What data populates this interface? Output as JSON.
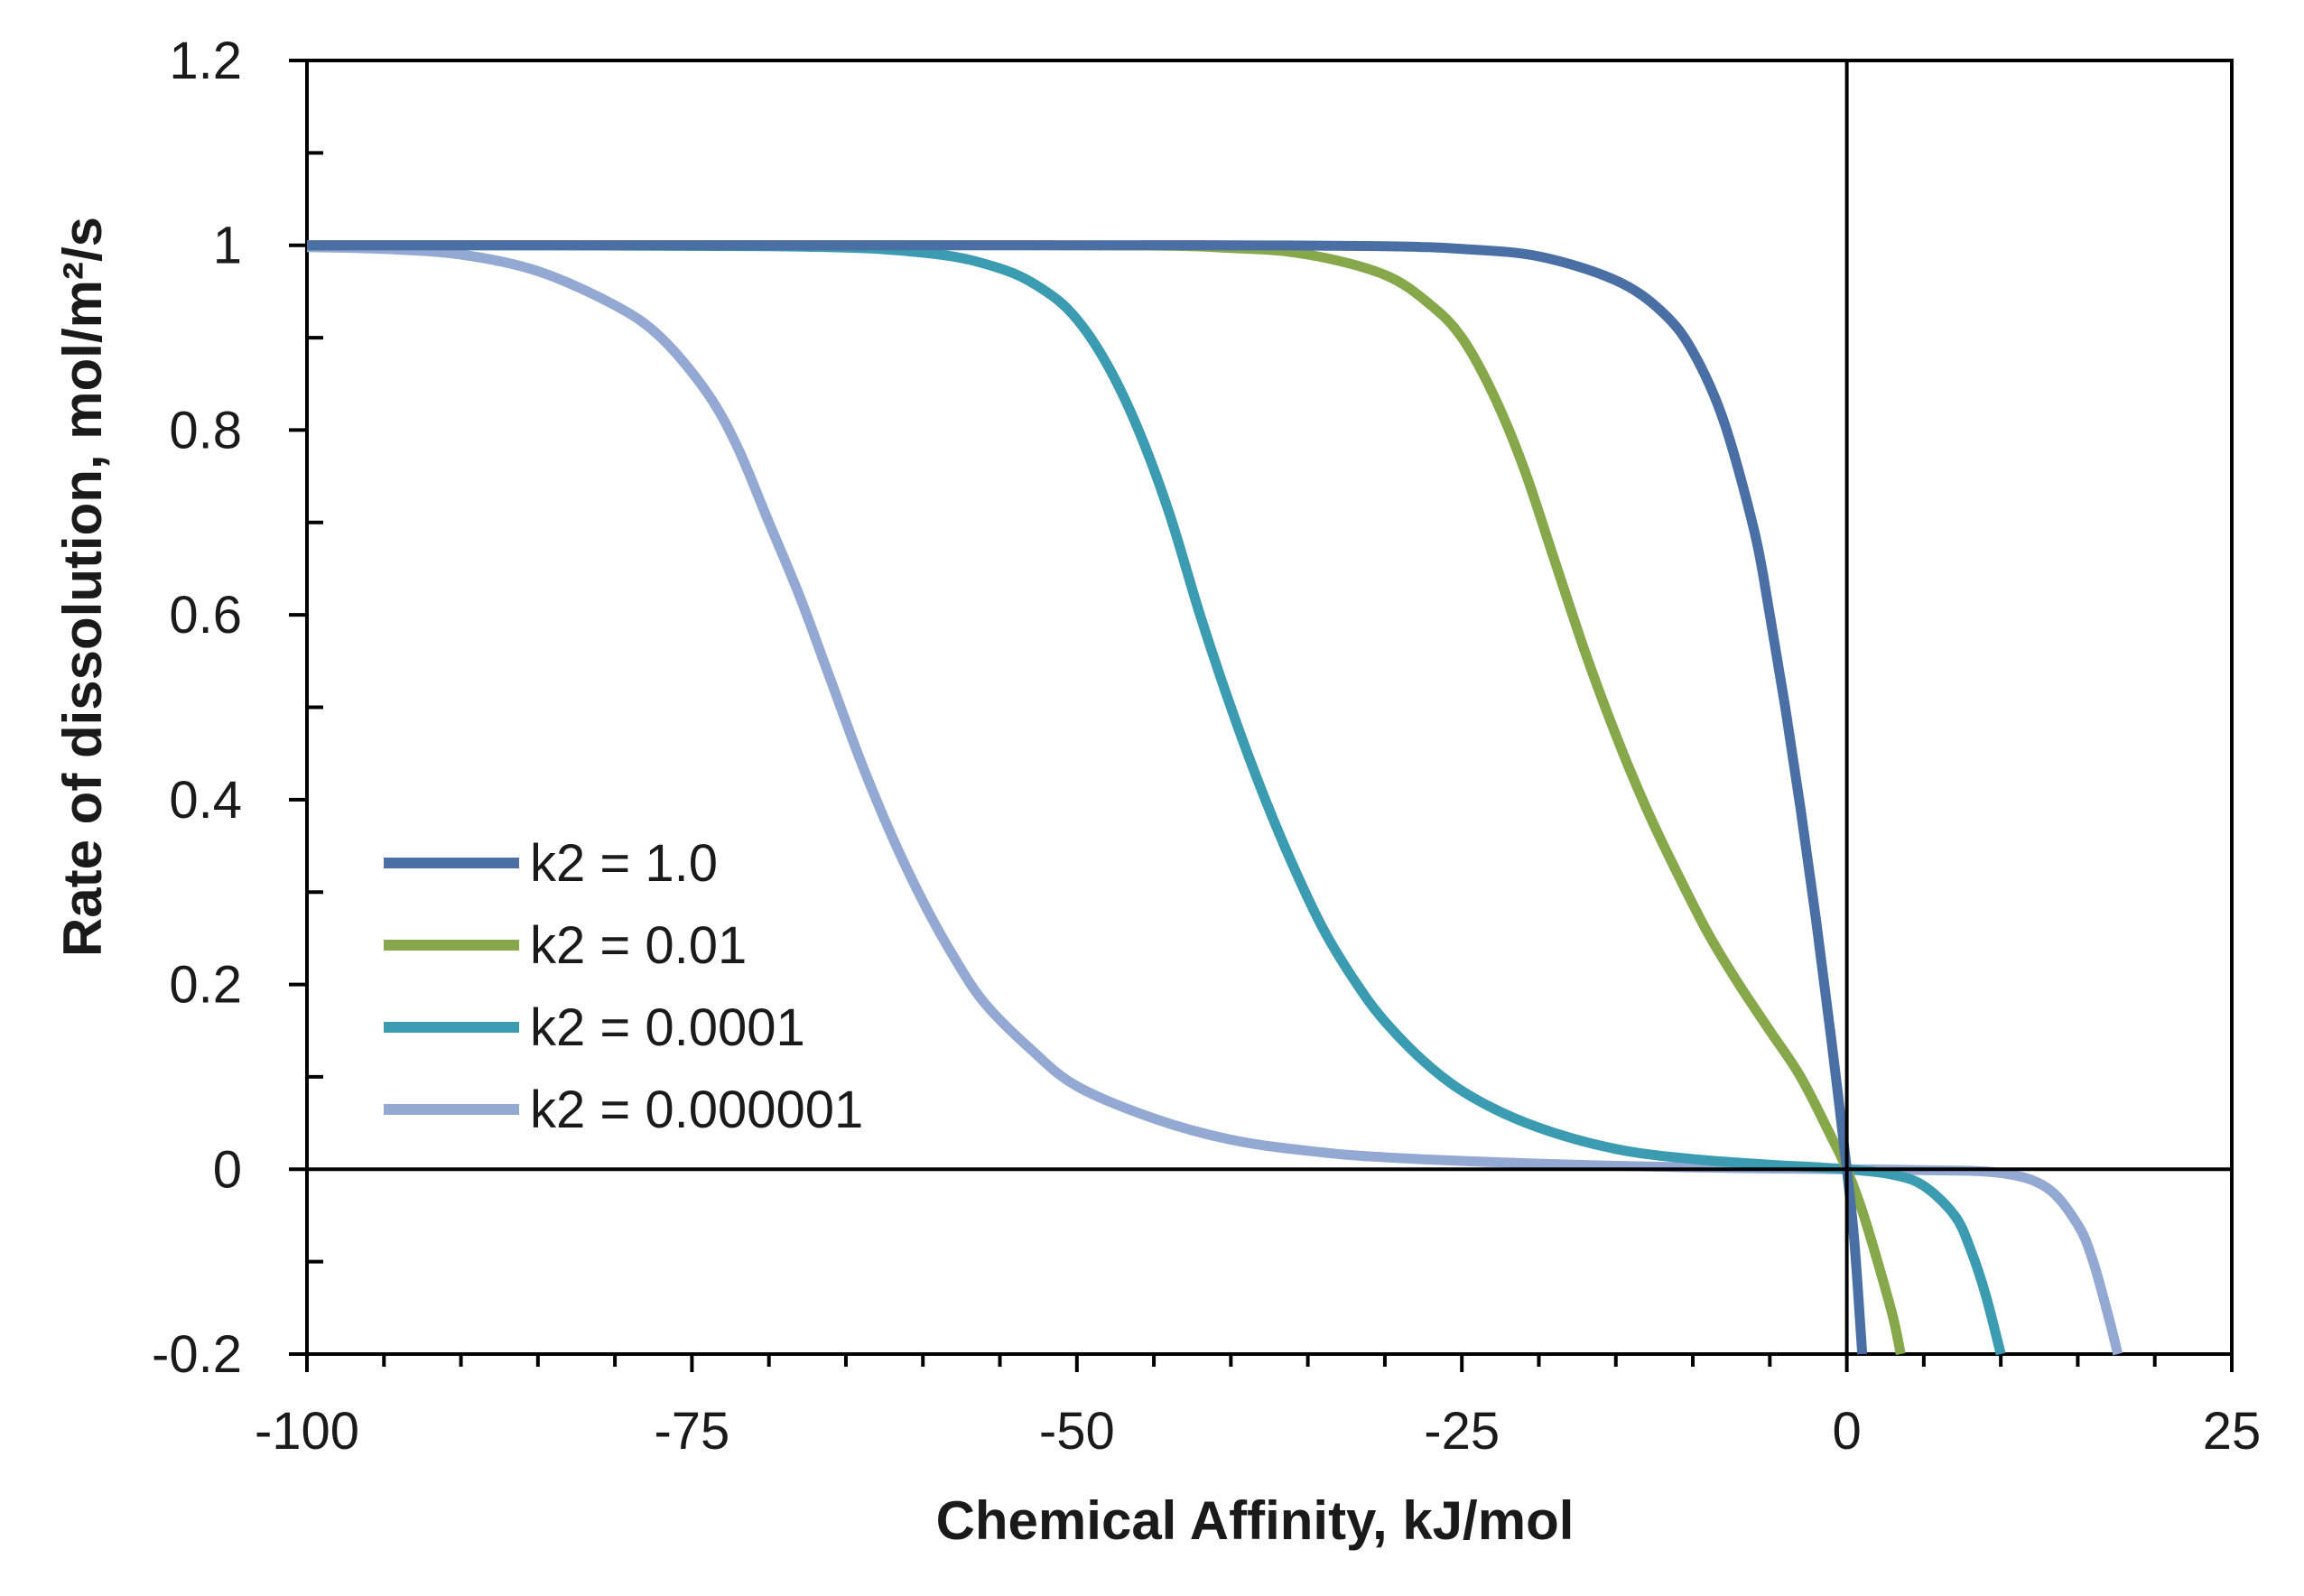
{
  "chart_data": {
    "type": "line",
    "title": "",
    "xlabel": "Chemical Affinity, kJ/mol",
    "ylabel": "Rate of dissolution, mol/m²/s",
    "xlim": [
      -100,
      25
    ],
    "ylim": [
      -0.2,
      1.2
    ],
    "x_ticks": [
      -100,
      -75,
      -50,
      -25,
      0,
      25
    ],
    "x_tick_labels": [
      "-100",
      "-75",
      "-50",
      "-25",
      "0",
      "25"
    ],
    "y_ticks": [
      -0.2,
      0,
      0.2,
      0.4,
      0.6,
      0.8,
      1,
      1.2
    ],
    "y_tick_labels": [
      "-0.2",
      "0",
      "0.2",
      "0.4",
      "0.6",
      "0.8",
      "1",
      "1.2"
    ],
    "x_minor_step": 5,
    "y_minor_step": 0.1,
    "grid": false,
    "legend_position": "bottom-left",
    "series": [
      {
        "name": "k2 = 1.0",
        "color": "#4a6fa5",
        "x": [
          -100,
          -50,
          -40,
          -30,
          -25,
          -20,
          -15,
          -12,
          -10,
          -8,
          -6,
          -5,
          -4,
          -3,
          -2,
          -1,
          0,
          0.5,
          1
        ],
        "y": [
          1.0,
          1.0,
          1.0,
          0.999,
          0.996,
          0.988,
          0.962,
          0.928,
          0.885,
          0.81,
          0.69,
          0.6,
          0.5,
          0.39,
          0.27,
          0.14,
          0.0,
          -0.08,
          -0.2
        ]
      },
      {
        "name": "k2 = 0.01",
        "color": "#86a84a",
        "x": [
          -100,
          -50,
          -40,
          -35,
          -30,
          -27,
          -25,
          -23,
          -21,
          -19,
          -17,
          -15,
          -13,
          -11,
          -9,
          -7,
          -5,
          -3,
          -1,
          0,
          1,
          2,
          3,
          3.5
        ],
        "y": [
          1.0,
          1.0,
          0.997,
          0.99,
          0.968,
          0.935,
          0.9,
          0.84,
          0.76,
          0.66,
          0.56,
          0.47,
          0.39,
          0.32,
          0.255,
          0.2,
          0.15,
          0.1,
          0.035,
          0.0,
          -0.045,
          -0.1,
          -0.16,
          -0.2
        ]
      },
      {
        "name": "k2 = 0.0001",
        "color": "#3b9bb0",
        "x": [
          -100,
          -70,
          -60,
          -55,
          -52,
          -50,
          -48,
          -46,
          -44,
          -42,
          -40,
          -38,
          -36,
          -34,
          -32,
          -30,
          -27,
          -24,
          -20,
          -15,
          -10,
          -5,
          0,
          3,
          5,
          7,
          8,
          9,
          10
        ],
        "y": [
          1.0,
          0.999,
          0.992,
          0.975,
          0.95,
          0.92,
          0.87,
          0.8,
          0.71,
          0.6,
          0.5,
          0.41,
          0.33,
          0.26,
          0.205,
          0.16,
          0.11,
          0.075,
          0.045,
          0.022,
          0.011,
          0.005,
          0.0,
          -0.006,
          -0.018,
          -0.05,
          -0.085,
          -0.135,
          -0.2
        ]
      },
      {
        "name": "k2 = 0.000001",
        "color": "#93a8d2",
        "x": [
          -100,
          -95,
          -90,
          -85,
          -80,
          -77,
          -74,
          -72,
          -70,
          -68,
          -66,
          -64,
          -62,
          -60,
          -58,
          -56,
          -53,
          -50,
          -45,
          -40,
          -35,
          -30,
          -20,
          -10,
          0,
          5,
          10,
          13,
          15,
          16,
          17,
          17.6
        ],
        "y": [
          0.998,
          0.996,
          0.99,
          0.972,
          0.935,
          0.9,
          0.84,
          0.78,
          0.7,
          0.62,
          0.53,
          0.44,
          0.36,
          0.29,
          0.23,
          0.18,
          0.13,
          0.09,
          0.055,
          0.032,
          0.02,
          0.013,
          0.006,
          0.002,
          0.0,
          -0.001,
          -0.004,
          -0.02,
          -0.06,
          -0.1,
          -0.16,
          -0.2
        ]
      }
    ]
  }
}
